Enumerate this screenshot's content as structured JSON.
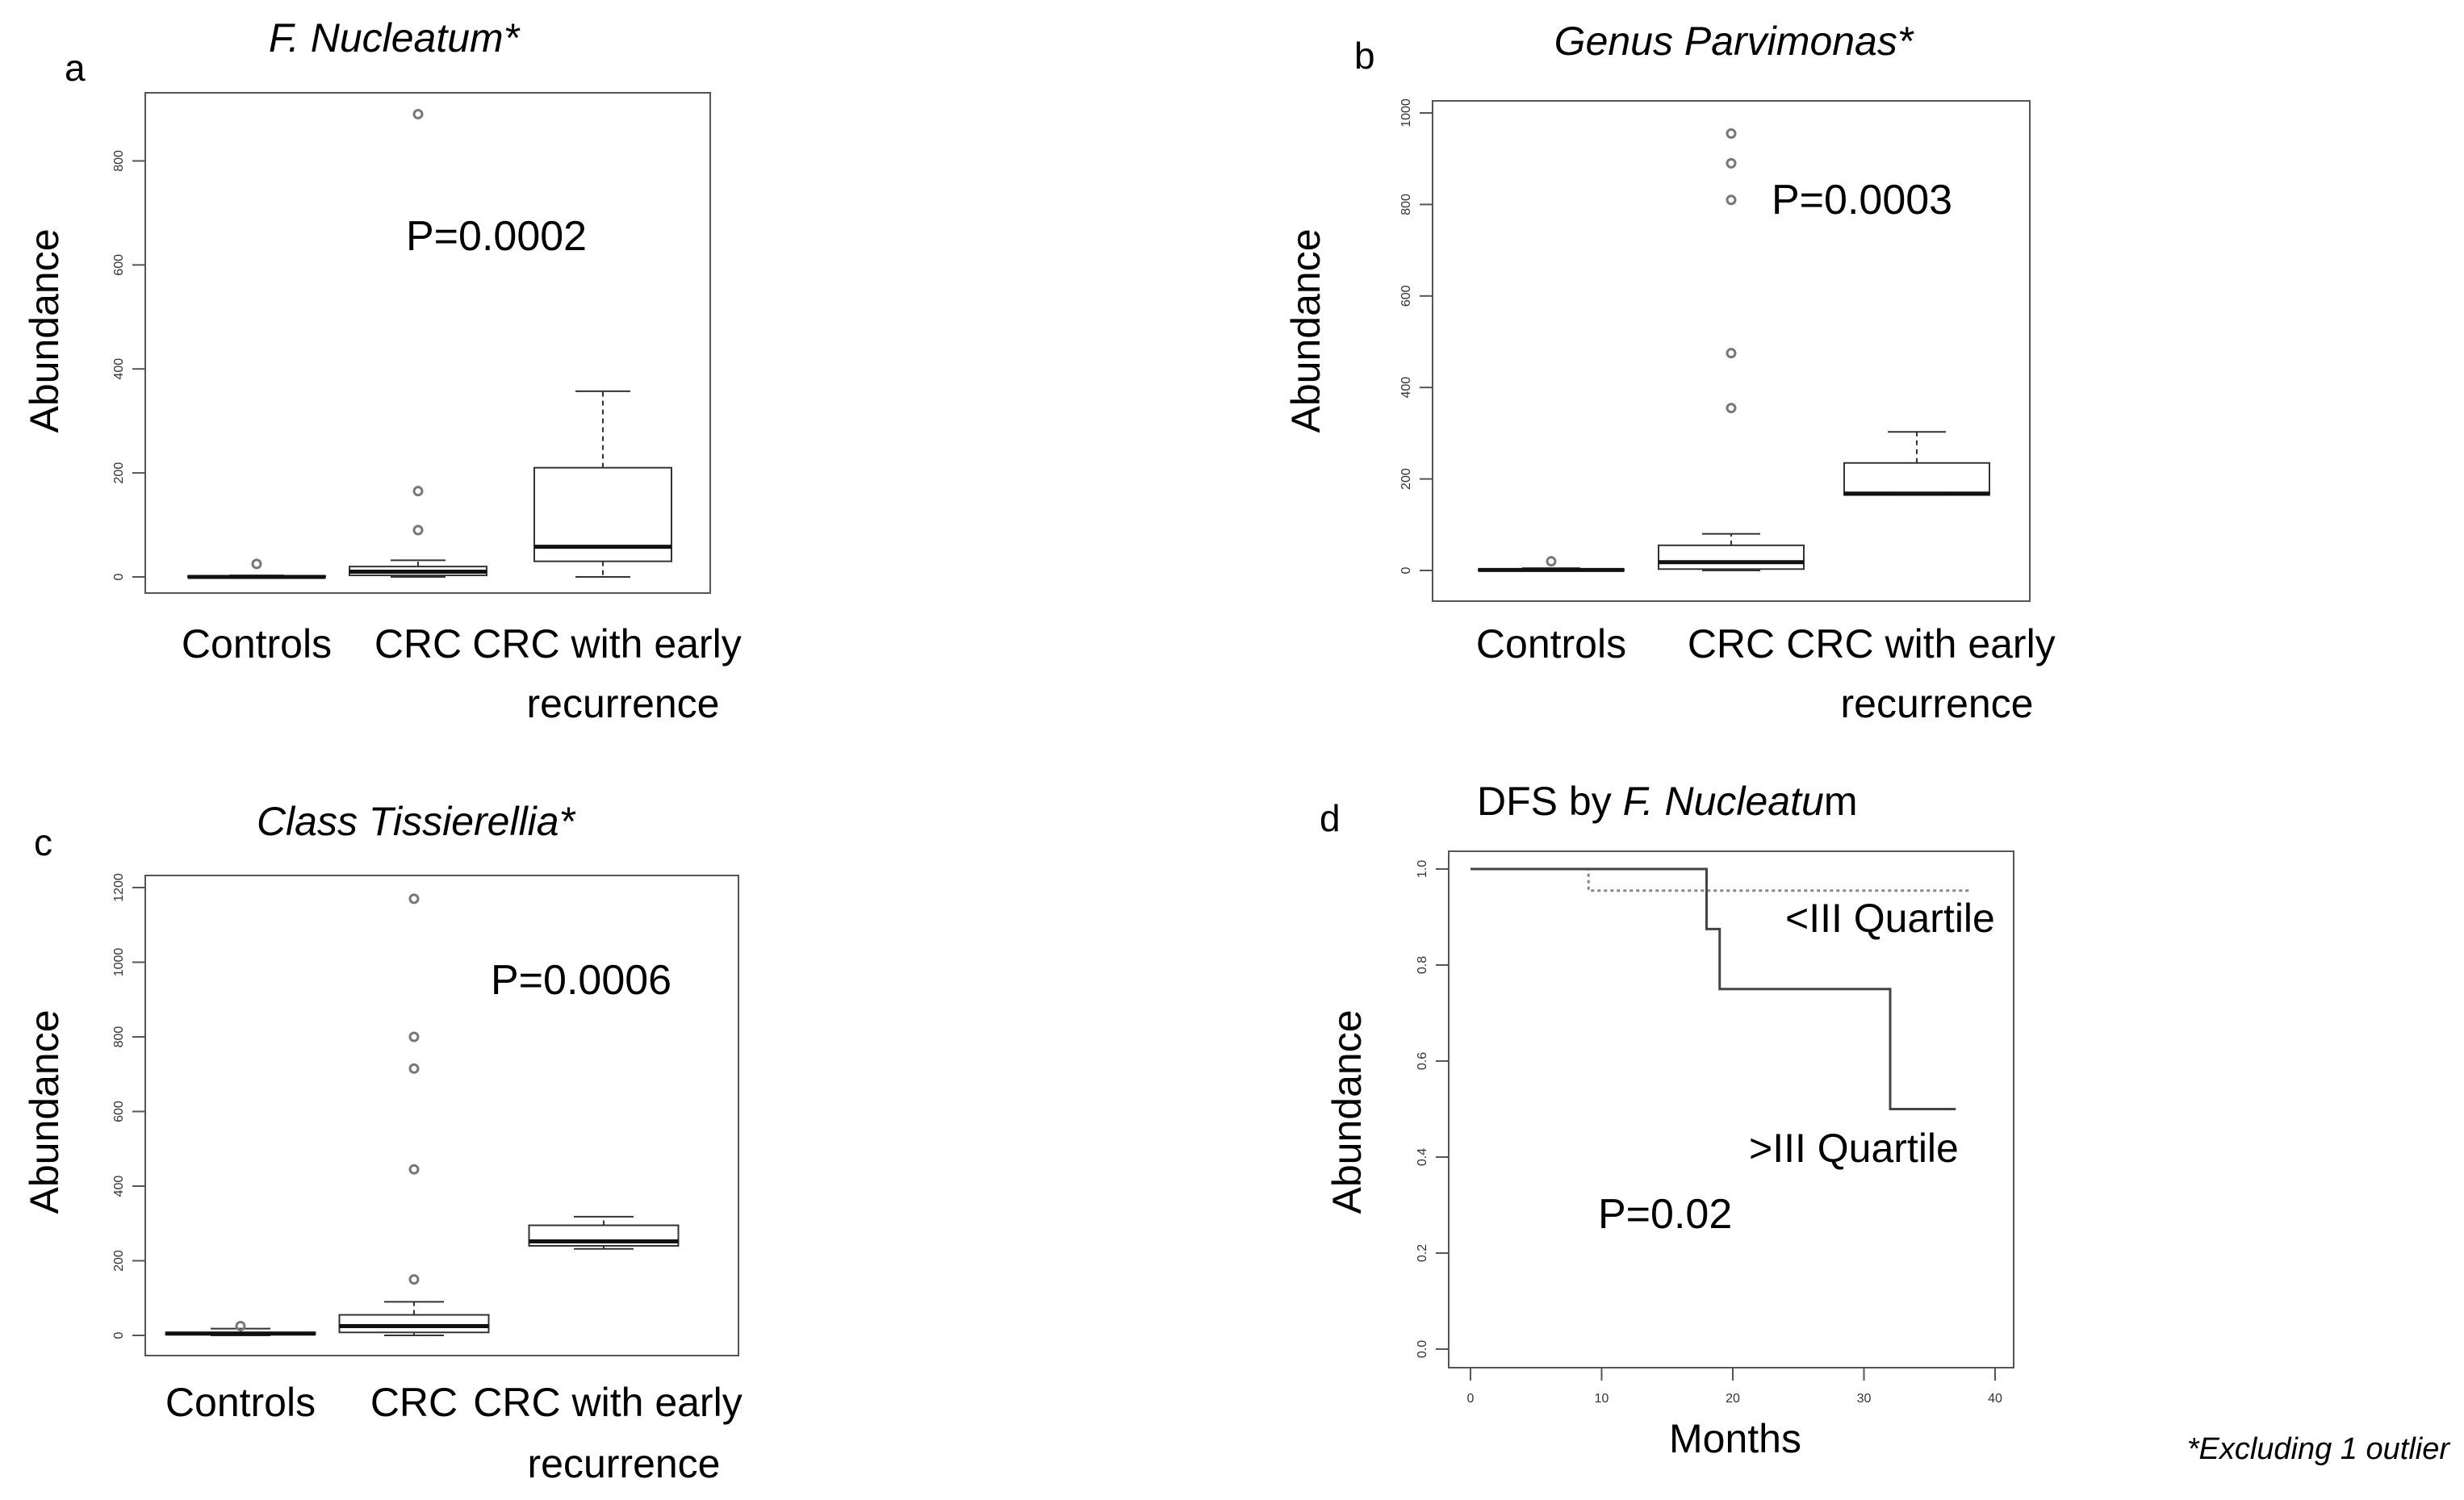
{
  "footnote": "*Excluding 1 outlier",
  "chart_data": [
    {
      "panel": "a",
      "type": "box",
      "title": "F. Nucleatum*",
      "ylabel": "Abundance",
      "xlabel": "",
      "ylim": [
        0,
        900
      ],
      "yticks": [
        0,
        200,
        400,
        600,
        800
      ],
      "p_value": "P=0.0002",
      "categories": [
        {
          "label_lines": [
            "Controls"
          ],
          "q1": 0,
          "median": 0,
          "q3": 2,
          "whisker_low": 0,
          "whisker_high": 3,
          "outliers": [
            25
          ]
        },
        {
          "label_lines": [
            "CRC"
          ],
          "q1": 3,
          "median": 10,
          "q3": 20,
          "whisker_low": 0,
          "whisker_high": 32,
          "outliers": [
            90,
            165,
            890
          ]
        },
        {
          "label_lines": [
            "CRC with early",
            "recurrence"
          ],
          "q1": 30,
          "median": 58,
          "q3": 210,
          "whisker_low": 0,
          "whisker_high": 357,
          "outliers": []
        }
      ]
    },
    {
      "panel": "b",
      "type": "box",
      "title": "Genus Parvimonas*",
      "ylabel": "Abundance",
      "xlabel": "",
      "ylim": [
        0,
        1000
      ],
      "yticks": [
        0,
        200,
        400,
        600,
        800,
        1000
      ],
      "p_value": "P=0.0003",
      "categories": [
        {
          "label_lines": [
            "Controls"
          ],
          "q1": 0,
          "median": 1,
          "q3": 3,
          "whisker_low": 0,
          "whisker_high": 5,
          "outliers": [
            20
          ]
        },
        {
          "label_lines": [
            "CRC"
          ],
          "q1": 3,
          "median": 18,
          "q3": 55,
          "whisker_low": 0,
          "whisker_high": 80,
          "outliers": [
            355,
            475,
            810,
            890,
            955
          ]
        },
        {
          "label_lines": [
            "CRC with early",
            "recurrence"
          ],
          "q1": 165,
          "median": 168,
          "q3": 235,
          "whisker_low": 165,
          "whisker_high": 303,
          "outliers": []
        }
      ]
    },
    {
      "panel": "c",
      "type": "box",
      "title": "Class Tissierellia*",
      "ylabel": "Abundance",
      "xlabel": "",
      "ylim": [
        0,
        1200
      ],
      "yticks": [
        0,
        200,
        400,
        600,
        800,
        1000,
        1200
      ],
      "p_value": "P=0.0006",
      "categories": [
        {
          "label_lines": [
            "Controls"
          ],
          "q1": 2,
          "median": 5,
          "q3": 8,
          "whisker_low": 0,
          "whisker_high": 18,
          "outliers": [
            25
          ]
        },
        {
          "label_lines": [
            "CRC"
          ],
          "q1": 8,
          "median": 25,
          "q3": 55,
          "whisker_low": 0,
          "whisker_high": 90,
          "outliers": [
            150,
            445,
            715,
            800,
            1170
          ]
        },
        {
          "label_lines": [
            "CRC with early",
            "recurrence"
          ],
          "q1": 240,
          "median": 252,
          "q3": 295,
          "whisker_low": 232,
          "whisker_high": 318,
          "outliers": []
        }
      ]
    },
    {
      "panel": "d",
      "type": "line",
      "title_prefix": "DFS by ",
      "title_italic": "F. Nucleatu",
      "title_suffix": "m",
      "ylabel": "Abundance",
      "xlabel": "Months",
      "xlim": [
        0,
        40
      ],
      "ylim": [
        0,
        1
      ],
      "xticks": [
        0,
        10,
        20,
        30,
        40
      ],
      "yticks": [
        "0.0",
        "0.2",
        "0.4",
        "0.6",
        "0.8",
        "1.0"
      ],
      "p_value": "P=0.02",
      "series": [
        {
          "name": "<III Quartile",
          "style": "dotted",
          "x": [
            0,
            9,
            9,
            38
          ],
          "y": [
            1.0,
            1.0,
            0.955,
            0.955
          ]
        },
        {
          "name": ">III Quartile",
          "style": "solid",
          "x": [
            0,
            18,
            18,
            19,
            19,
            32,
            32,
            37
          ],
          "y": [
            1.0,
            1.0,
            0.875,
            0.875,
            0.75,
            0.75,
            0.5,
            0.5
          ]
        }
      ]
    }
  ]
}
